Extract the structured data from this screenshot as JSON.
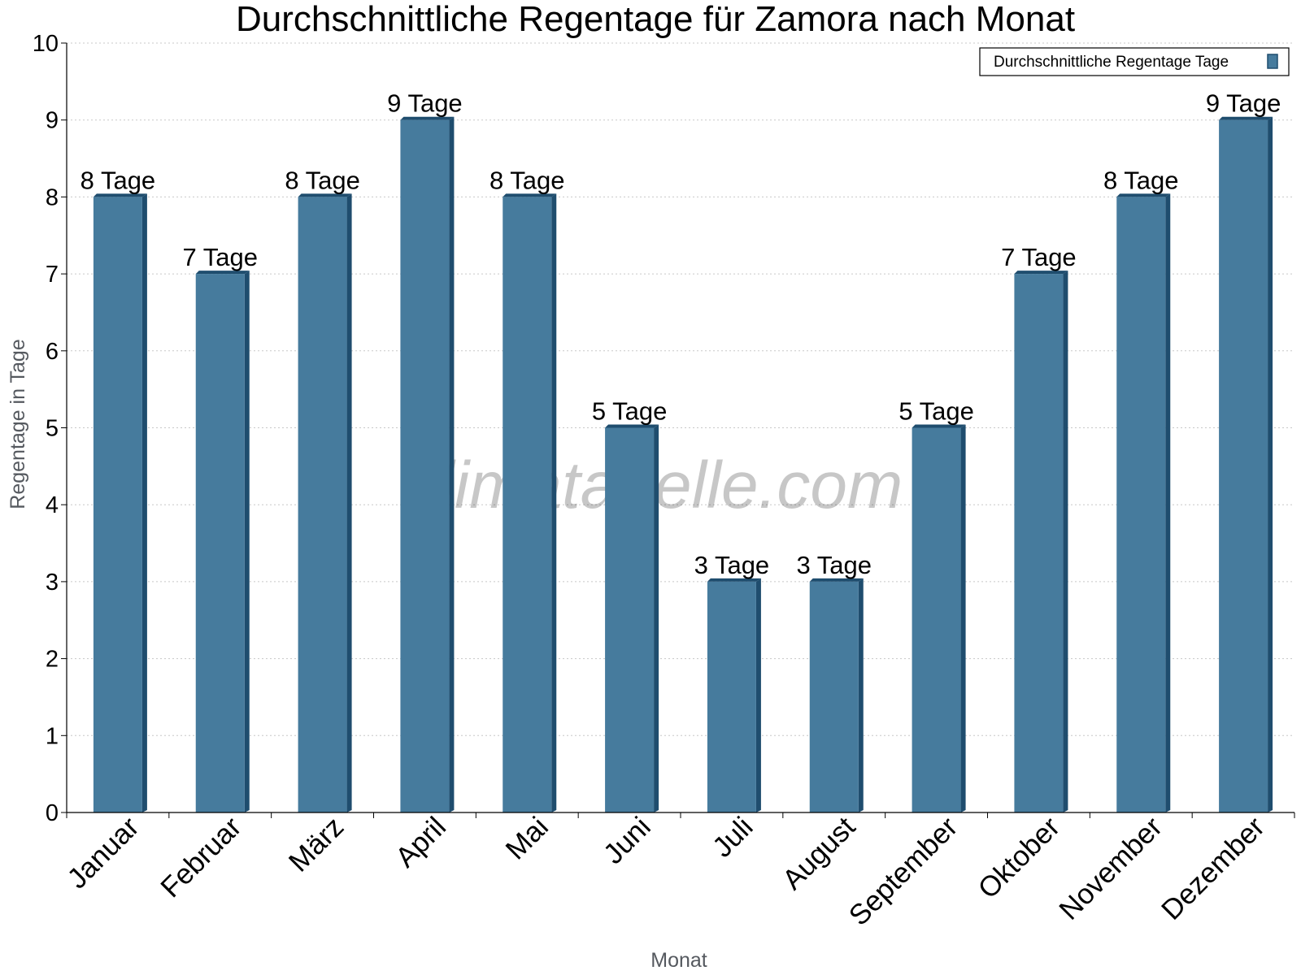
{
  "watermark": "klimatabelle.com",
  "chart_data": {
    "type": "bar",
    "title": "Durchschnittliche Regentage für Zamora nach Monat",
    "xlabel": "Monat",
    "ylabel": "Regentage in Tage",
    "categories": [
      "Januar",
      "Februar",
      "März",
      "April",
      "Mai",
      "Juni",
      "Juli",
      "August",
      "September",
      "Oktober",
      "November",
      "Dezember"
    ],
    "series": [
      {
        "name": "Durchschnittliche Regentage Tage",
        "values": [
          8,
          7,
          8,
          9,
          8,
          5,
          3,
          3,
          5,
          7,
          8,
          9
        ],
        "labels": [
          "8 Tage",
          "7 Tage",
          "8 Tage",
          "9 Tage",
          "8 Tage",
          "5 Tage",
          "3 Tage",
          "3 Tage",
          "5 Tage",
          "7 Tage",
          "8 Tage",
          "9 Tage"
        ],
        "color": "#467b9d",
        "side_color": "#1f4d6e"
      }
    ],
    "ylim": [
      0,
      10
    ],
    "yticks": [
      "0",
      "1",
      "2",
      "3",
      "4",
      "5",
      "6",
      "7",
      "8",
      "9",
      "10"
    ],
    "grid": true,
    "legend": "top-right"
  }
}
